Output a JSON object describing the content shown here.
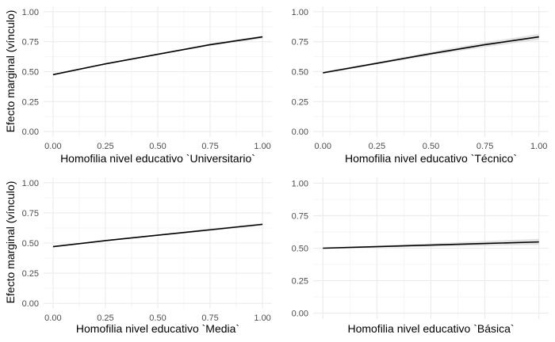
{
  "figure": {
    "ylabel_top": "Efecto marginal (vínculo)",
    "ylabel_bottom": "Efecto marginal (vínculo)"
  },
  "colors": {
    "background": "#ffffff",
    "grid_major": "#ebebeb",
    "grid_minor": "#f5f5f5",
    "ribbon": "#d9d9d9",
    "line": "#000000",
    "tick_text": "#4d4d4d"
  },
  "chart_data": [
    {
      "type": "line",
      "xlabel": "Homofilia nivel educativo `Universitario`",
      "ylabel": "Efecto marginal (vínculo)",
      "xlim": [
        0,
        1
      ],
      "ylim": [
        0,
        1
      ],
      "x_ticks": [
        "0.00",
        "0.25",
        "0.50",
        "0.75",
        "1.00"
      ],
      "y_ticks": [
        "0.00",
        "0.25",
        "0.50",
        "0.75",
        "1.00"
      ],
      "grid": true,
      "series": [
        {
          "x": [
            0,
            0.25,
            0.5,
            0.75,
            1
          ],
          "y": [
            0.475,
            0.565,
            0.645,
            0.725,
            0.79
          ],
          "lower": [
            0.47,
            0.56,
            0.64,
            0.715,
            0.775
          ],
          "upper": [
            0.48,
            0.57,
            0.65,
            0.735,
            0.8
          ]
        }
      ]
    },
    {
      "type": "line",
      "xlabel": "Homofilia nivel educativo `Técnico`",
      "ylabel": "",
      "xlim": [
        0,
        1
      ],
      "ylim": [
        0,
        1
      ],
      "x_ticks": [
        "0.00",
        "0.25",
        "0.50",
        "0.75",
        "1.00"
      ],
      "y_ticks": [
        "0.00",
        "0.25",
        "0.50",
        "0.75",
        "1.00"
      ],
      "grid": true,
      "series": [
        {
          "x": [
            0,
            0.25,
            0.5,
            0.75,
            1
          ],
          "y": [
            0.49,
            0.57,
            0.65,
            0.725,
            0.79
          ],
          "lower": [
            0.48,
            0.56,
            0.635,
            0.705,
            0.765
          ],
          "upper": [
            0.5,
            0.58,
            0.665,
            0.745,
            0.815
          ]
        }
      ]
    },
    {
      "type": "line",
      "xlabel": "Homofilia nivel educativo `Media`",
      "ylabel": "Efecto marginal (vínculo)",
      "xlim": [
        0,
        1
      ],
      "ylim": [
        0,
        1
      ],
      "x_ticks": [
        "0.00",
        "0.25",
        "0.50",
        "0.75",
        "1.00"
      ],
      "y_ticks": [
        "0.00",
        "0.25",
        "0.50",
        "0.75",
        "1.00"
      ],
      "grid": true,
      "series": [
        {
          "x": [
            0,
            0.25,
            0.5,
            0.75,
            1
          ],
          "y": [
            0.47,
            0.52,
            0.565,
            0.61,
            0.655
          ],
          "lower": [
            0.465,
            0.515,
            0.56,
            0.6,
            0.645
          ],
          "upper": [
            0.475,
            0.525,
            0.57,
            0.62,
            0.665
          ]
        }
      ]
    },
    {
      "type": "line",
      "xlabel": "Homofilia nivel educativo `Básica`",
      "ylabel": "",
      "xlim": [
        0,
        1
      ],
      "ylim": [
        0,
        1
      ],
      "x_ticks": [],
      "y_ticks": [
        "0.00",
        "0.25",
        "0.50",
        "0.75",
        "1.00"
      ],
      "grid": true,
      "series": [
        {
          "x": [
            0,
            0.25,
            0.5,
            0.75,
            1
          ],
          "y": [
            0.5,
            0.512,
            0.524,
            0.536,
            0.548
          ],
          "lower": [
            0.495,
            0.505,
            0.512,
            0.518,
            0.525
          ],
          "upper": [
            0.505,
            0.52,
            0.537,
            0.555,
            0.572
          ]
        }
      ]
    }
  ]
}
